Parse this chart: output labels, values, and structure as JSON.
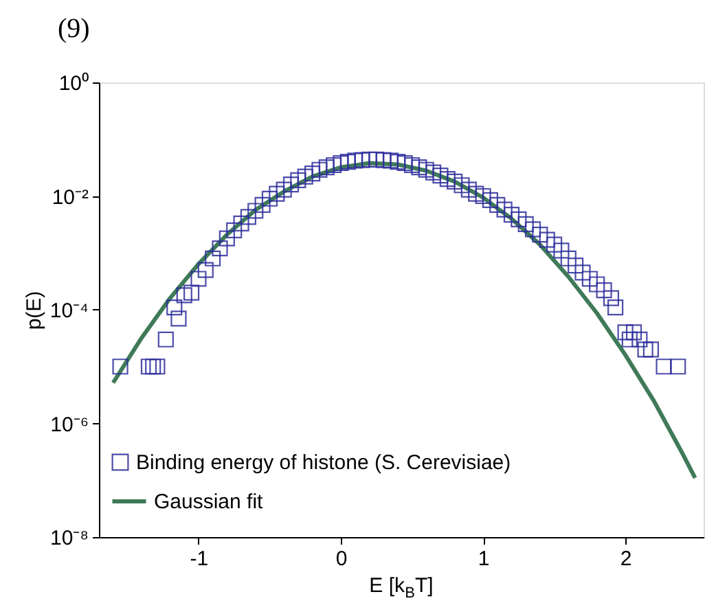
{
  "chart_data": {
    "type": "scatter",
    "title": "(9)",
    "xlabel": "E [k$_{B}$T]",
    "ylabel": "p(E)",
    "log": "y",
    "grid": false,
    "legend": "bottom left",
    "xlim": [
      -1.7,
      2.55
    ],
    "xticks": [
      -1,
      0,
      1,
      2
    ],
    "ylim": [
      1e-08,
      1
    ],
    "yticks": [
      {
        "value": 1e-08,
        "label": "10⁻⁸"
      },
      {
        "value": 1e-06,
        "label": "10⁻⁶"
      },
      {
        "value": 0.0001,
        "label": "10⁻⁴"
      },
      {
        "value": 0.01,
        "label": "10⁻²"
      },
      {
        "value": 1,
        "label": "10⁰"
      }
    ],
    "series": [
      {
        "name": "Binding energy of histone (S. Cerevisiae)",
        "marker": "square",
        "color": "#2e2e9c",
        "x": [
          -1.55,
          -1.35,
          -1.32,
          -1.29,
          -1.23,
          -1.17,
          -1.14,
          -1.1,
          -1.05,
          -1.0,
          -0.95,
          -0.9,
          -0.85,
          -0.8,
          -0.75,
          -0.7,
          -0.65,
          -0.6,
          -0.55,
          -0.5,
          -0.45,
          -0.4,
          -0.35,
          -0.3,
          -0.25,
          -0.2,
          -0.15,
          -0.1,
          -0.05,
          0,
          0.05,
          0.1,
          0.15,
          0.2,
          0.25,
          0.3,
          0.35,
          0.4,
          0.45,
          0.5,
          0.55,
          0.6,
          0.65,
          0.7,
          0.75,
          0.8,
          0.85,
          0.9,
          0.95,
          1.0,
          1.05,
          1.1,
          1.15,
          1.2,
          1.25,
          1.3,
          1.35,
          1.4,
          1.45,
          1.5,
          1.55,
          1.6,
          1.65,
          1.7,
          1.75,
          1.8,
          1.85,
          1.9,
          1.93,
          2.0,
          2.03,
          2.06,
          2.1,
          2.14,
          2.18,
          2.27,
          2.37
        ],
        "values": [
          1e-05,
          1e-05,
          1e-05,
          1e-05,
          3e-05,
          0.00011,
          7e-05,
          0.00018,
          0.0002,
          0.00035,
          0.0005,
          0.0008,
          0.0012,
          0.0018,
          0.0025,
          0.0033,
          0.0043,
          0.0055,
          0.007,
          0.009,
          0.011,
          0.013,
          0.016,
          0.019,
          0.022,
          0.025,
          0.029,
          0.032,
          0.035,
          0.038,
          0.04,
          0.042,
          0.043,
          0.044,
          0.044,
          0.043,
          0.042,
          0.04,
          0.038,
          0.035,
          0.032,
          0.029,
          0.026,
          0.023,
          0.02,
          0.018,
          0.0155,
          0.013,
          0.011,
          0.01,
          0.0085,
          0.007,
          0.0058,
          0.0047,
          0.0039,
          0.0032,
          0.0026,
          0.0021,
          0.0017,
          0.0014,
          0.0011,
          0.0008,
          0.0006,
          0.00045,
          0.00035,
          0.00028,
          0.00022,
          0.00016,
          0.00011,
          4e-05,
          3e-05,
          4e-05,
          3e-05,
          2e-05,
          2e-05,
          1e-05,
          1e-05
        ]
      },
      {
        "name": "Gaussian fit",
        "type": "line",
        "line_style": "solid",
        "marker": "none",
        "color": "#3f7a58",
        "x": [
          -1.6,
          -1.4,
          -1.2,
          -1.0,
          -0.8,
          -0.6,
          -0.4,
          -0.2,
          0,
          0.2,
          0.4,
          0.6,
          0.8,
          1.0,
          1.2,
          1.4,
          1.6,
          1.8,
          2.0,
          2.2,
          2.4,
          2.49
        ],
        "values": [
          5.2e-06,
          3.2e-05,
          0.00016,
          0.00064,
          0.0021,
          0.0057,
          0.012,
          0.022,
          0.032,
          0.038,
          0.036,
          0.028,
          0.018,
          0.0094,
          0.004,
          0.0014,
          0.00038,
          8.7e-05,
          1.6e-05,
          2.5e-06,
          3e-07,
          1.1e-07
        ]
      }
    ]
  }
}
